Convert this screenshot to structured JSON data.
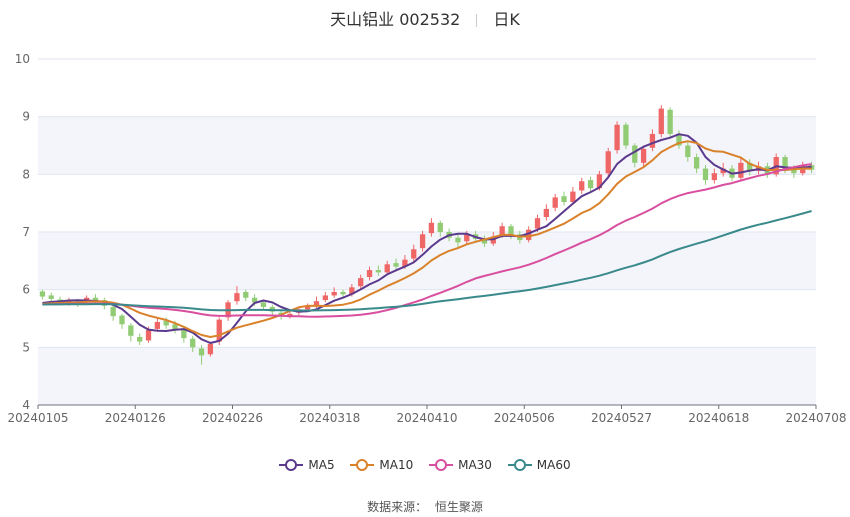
{
  "chart_data": {
    "type": "candlestick",
    "title": "天山铝业 002532",
    "period_label": "日K",
    "source_label": "数据来源：",
    "source_name": "恒生聚源",
    "ylim": [
      4,
      10
    ],
    "y_ticks": [
      4,
      5,
      6,
      7,
      8,
      9,
      10
    ],
    "x_start": "20240105",
    "x_end": "20240708",
    "x_tick_labels": [
      "20240105",
      "20240126",
      "20240226",
      "20240318",
      "20240410",
      "20240506",
      "20240527",
      "20240618",
      "20240708"
    ],
    "grid": true,
    "legend_position": "bottom",
    "up_color": "#ee6666",
    "down_color": "#91cc75",
    "series": [
      {
        "name": "MA5",
        "color": "#5b3a8e"
      },
      {
        "name": "MA10",
        "color": "#d9822b"
      },
      {
        "name": "MA30",
        "color": "#d94f9f"
      },
      {
        "name": "MA60",
        "color": "#3a8a8c"
      }
    ],
    "candles": [
      [
        5.97,
        5.88,
        6.0,
        5.83
      ],
      [
        5.9,
        5.84,
        5.95,
        5.8
      ],
      [
        5.83,
        5.78,
        5.88,
        5.74
      ],
      [
        5.76,
        5.82,
        5.86,
        5.72
      ],
      [
        5.8,
        5.76,
        5.84,
        5.7
      ],
      [
        5.78,
        5.86,
        5.9,
        5.74
      ],
      [
        5.86,
        5.8,
        5.92,
        5.76
      ],
      [
        5.82,
        5.72,
        5.86,
        5.66
      ],
      [
        5.7,
        5.54,
        5.74,
        5.46
      ],
      [
        5.55,
        5.4,
        5.58,
        5.32
      ],
      [
        5.38,
        5.2,
        5.42,
        5.1
      ],
      [
        5.18,
        5.1,
        5.24,
        5.04
      ],
      [
        5.12,
        5.3,
        5.36,
        5.08
      ],
      [
        5.32,
        5.44,
        5.5,
        5.28
      ],
      [
        5.46,
        5.38,
        5.52,
        5.32
      ],
      [
        5.4,
        5.3,
        5.46,
        5.24
      ],
      [
        5.3,
        5.16,
        5.34,
        5.08
      ],
      [
        5.15,
        5.0,
        5.2,
        4.92
      ],
      [
        4.98,
        4.86,
        5.04,
        4.7
      ],
      [
        4.88,
        5.06,
        5.1,
        4.84
      ],
      [
        5.1,
        5.48,
        5.52,
        5.04
      ],
      [
        5.52,
        5.78,
        5.82,
        5.46
      ],
      [
        5.8,
        5.94,
        6.06,
        5.74
      ],
      [
        5.96,
        5.86,
        6.0,
        5.8
      ],
      [
        5.86,
        5.78,
        5.92,
        5.72
      ],
      [
        5.78,
        5.7,
        5.82,
        5.64
      ],
      [
        5.7,
        5.62,
        5.74,
        5.56
      ],
      [
        5.6,
        5.54,
        5.66,
        5.48
      ],
      [
        5.54,
        5.58,
        5.62,
        5.5
      ],
      [
        5.6,
        5.66,
        5.7,
        5.56
      ],
      [
        5.66,
        5.72,
        5.76,
        5.62
      ],
      [
        5.72,
        5.8,
        5.88,
        5.68
      ],
      [
        5.82,
        5.9,
        5.96,
        5.78
      ],
      [
        5.9,
        5.96,
        6.04,
        5.86
      ],
      [
        5.96,
        5.92,
        6.0,
        5.86
      ],
      [
        5.92,
        6.04,
        6.1,
        5.88
      ],
      [
        6.06,
        6.2,
        6.26,
        6.0
      ],
      [
        6.22,
        6.34,
        6.4,
        6.16
      ],
      [
        6.34,
        6.3,
        6.42,
        6.24
      ],
      [
        6.3,
        6.44,
        6.5,
        6.26
      ],
      [
        6.46,
        6.4,
        6.54,
        6.32
      ],
      [
        6.4,
        6.52,
        6.6,
        6.36
      ],
      [
        6.54,
        6.7,
        6.78,
        6.48
      ],
      [
        6.72,
        6.96,
        7.02,
        6.66
      ],
      [
        6.98,
        7.16,
        7.24,
        6.92
      ],
      [
        7.16,
        7.0,
        7.2,
        6.92
      ],
      [
        7.0,
        6.9,
        7.06,
        6.84
      ],
      [
        6.9,
        6.82,
        6.96,
        6.74
      ],
      [
        6.84,
        6.96,
        7.02,
        6.78
      ],
      [
        6.96,
        6.88,
        7.02,
        6.82
      ],
      [
        6.88,
        6.8,
        6.94,
        6.74
      ],
      [
        6.8,
        6.92,
        7.0,
        6.76
      ],
      [
        6.94,
        7.1,
        7.16,
        6.9
      ],
      [
        7.1,
        6.96,
        7.14,
        6.88
      ],
      [
        6.96,
        6.86,
        7.02,
        6.8
      ],
      [
        6.86,
        7.04,
        7.1,
        6.82
      ],
      [
        7.06,
        7.24,
        7.3,
        7.0
      ],
      [
        7.26,
        7.4,
        7.48,
        7.2
      ],
      [
        7.42,
        7.6,
        7.66,
        7.36
      ],
      [
        7.62,
        7.52,
        7.7,
        7.46
      ],
      [
        7.52,
        7.7,
        7.78,
        7.48
      ],
      [
        7.72,
        7.88,
        7.94,
        7.66
      ],
      [
        7.9,
        7.76,
        7.96,
        7.7
      ],
      [
        7.76,
        8.0,
        8.06,
        7.72
      ],
      [
        8.02,
        8.4,
        8.46,
        7.96
      ],
      [
        8.42,
        8.86,
        8.92,
        8.36
      ],
      [
        8.86,
        8.5,
        8.9,
        8.44
      ],
      [
        8.5,
        8.2,
        8.54,
        8.12
      ],
      [
        8.2,
        8.44,
        8.5,
        8.14
      ],
      [
        8.46,
        8.7,
        8.78,
        8.4
      ],
      [
        8.7,
        9.14,
        9.2,
        8.64
      ],
      [
        9.12,
        8.7,
        9.16,
        8.62
      ],
      [
        8.7,
        8.5,
        8.76,
        8.44
      ],
      [
        8.5,
        8.3,
        8.56,
        8.22
      ],
      [
        8.3,
        8.1,
        8.36,
        8.02
      ],
      [
        8.1,
        7.9,
        8.16,
        7.82
      ],
      [
        7.9,
        8.02,
        8.1,
        7.84
      ],
      [
        8.02,
        8.1,
        8.2,
        7.96
      ],
      [
        8.1,
        7.94,
        8.16,
        7.88
      ],
      [
        7.94,
        8.2,
        8.28,
        7.9
      ],
      [
        8.2,
        8.06,
        8.26,
        7.98
      ],
      [
        8.06,
        8.14,
        8.22,
        8.0
      ],
      [
        8.14,
        8.0,
        8.2,
        7.94
      ],
      [
        8.0,
        8.3,
        8.36,
        7.96
      ],
      [
        8.3,
        8.1,
        8.34,
        8.02
      ],
      [
        8.1,
        8.02,
        8.16,
        7.94
      ],
      [
        8.02,
        8.16,
        8.22,
        7.98
      ],
      [
        8.16,
        8.08,
        8.22,
        8.02
      ]
    ]
  }
}
